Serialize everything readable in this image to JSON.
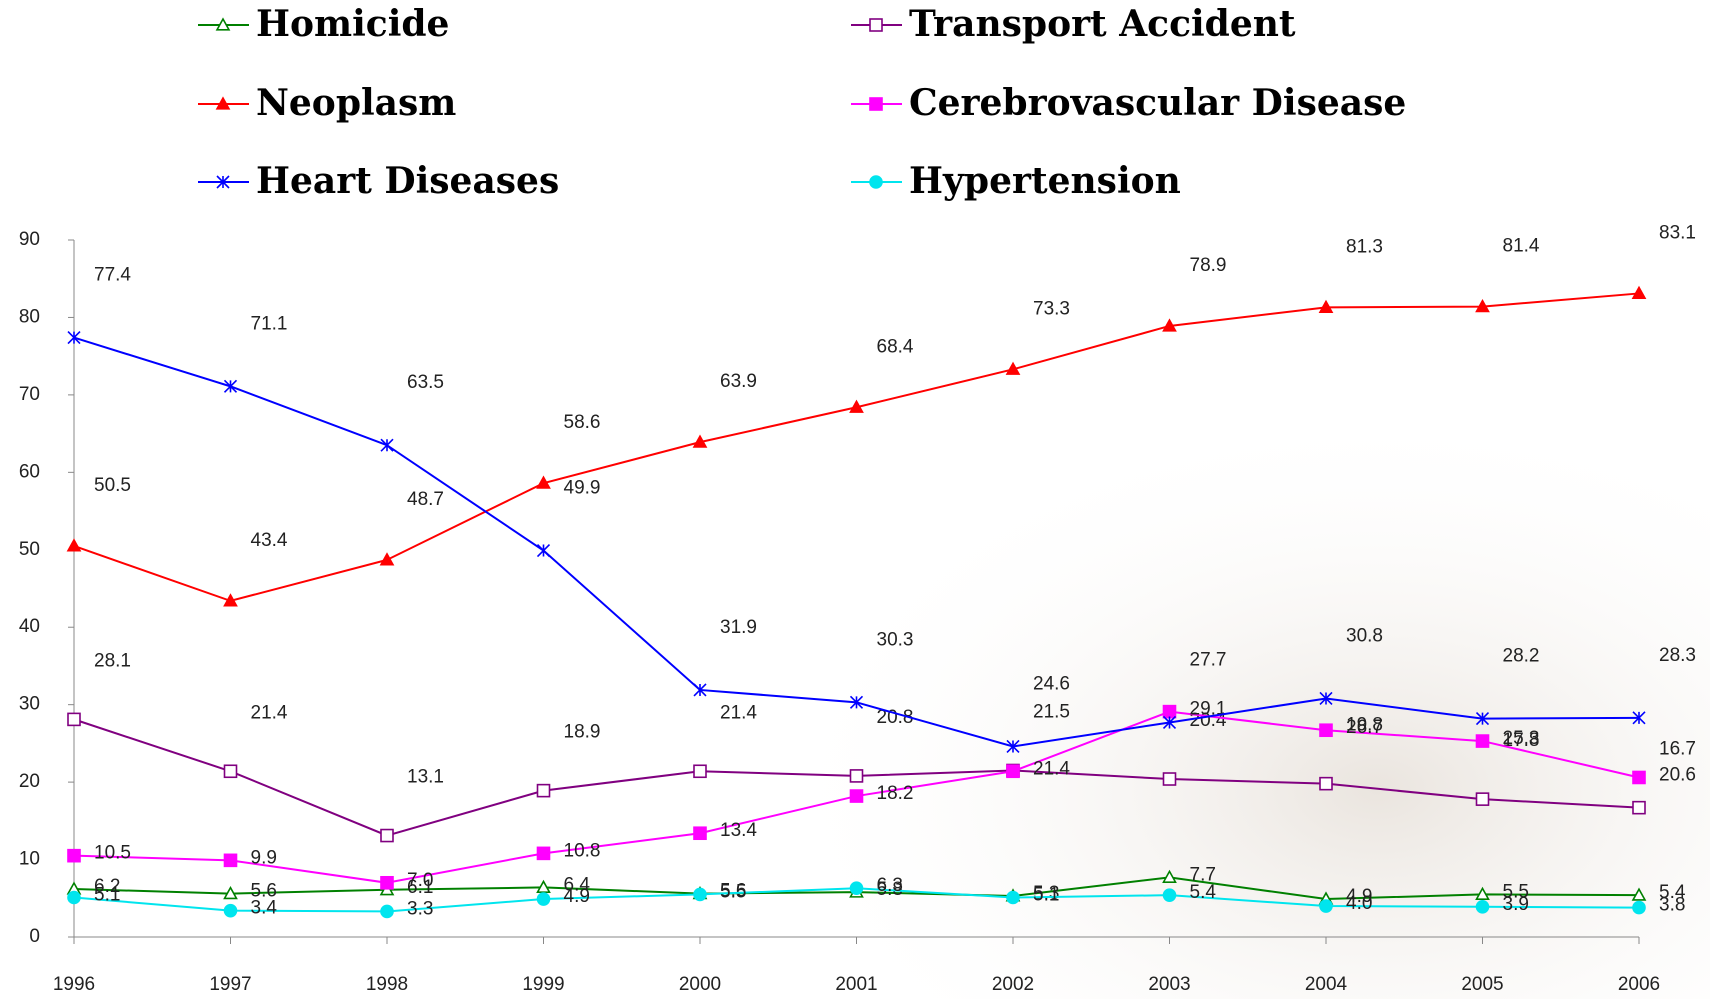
{
  "chart_data": {
    "type": "line",
    "categories": [
      "1996",
      "1997",
      "1998",
      "1999",
      "2000",
      "2001",
      "2002",
      "2003",
      "2004",
      "2005",
      "2006"
    ],
    "series": [
      {
        "name": "Homicide",
        "color": "#008000",
        "marker": "triangle-open",
        "values": [
          6.2,
          5.6,
          6.1,
          6.4,
          5.6,
          5.8,
          5.3,
          7.7,
          4.9,
          5.5,
          5.4
        ],
        "value_labels": [
          "6.2",
          "5.6",
          "6.1",
          "6.4",
          "5.6",
          "5.8",
          "5.3",
          "7.7",
          "4.9",
          "5.5",
          "5.4"
        ]
      },
      {
        "name": "Transport Accident",
        "color": "#800080",
        "marker": "square-open",
        "values": [
          28.1,
          21.4,
          13.1,
          18.9,
          21.4,
          20.8,
          21.5,
          20.4,
          19.8,
          17.8,
          16.7
        ],
        "value_labels": [
          "28.1",
          "21.4",
          "13.1",
          "18.9",
          "21.4",
          "20.8",
          "21.5",
          "20.4",
          "19.8",
          "17.8",
          "16.7"
        ]
      },
      {
        "name": "Neoplasm",
        "color": "#ff0000",
        "marker": "triangle",
        "values": [
          50.5,
          43.4,
          48.7,
          58.6,
          63.9,
          68.4,
          73.3,
          78.9,
          81.3,
          81.4,
          83.1
        ],
        "value_labels": [
          "50.5",
          "43.4",
          "48.7",
          "58.6",
          "63.9",
          "68.4",
          "73.3",
          "78.9",
          "81.3",
          "81.4",
          "83.1"
        ]
      },
      {
        "name": "Cerebrovascular Disease",
        "color": "#ff00ff",
        "marker": "square",
        "values": [
          10.5,
          9.9,
          7.0,
          10.8,
          13.4,
          18.2,
          21.4,
          29.1,
          26.7,
          25.3,
          20.6
        ],
        "value_labels": [
          "10.5",
          "9.9",
          "7.0",
          "10.8",
          "13.4",
          "18.2",
          "21.4",
          "29.1",
          "26.7",
          "25.3",
          "20.6"
        ]
      },
      {
        "name": "Heart Diseases",
        "color": "#0000ff",
        "marker": "star",
        "values": [
          77.4,
          71.1,
          63.5,
          49.9,
          31.9,
          30.3,
          24.6,
          27.7,
          30.8,
          28.2,
          28.3
        ],
        "value_labels": [
          "77.4",
          "71.1",
          "63.5",
          "49.9",
          "31.9",
          "30.3",
          "24.6",
          "27.7",
          "30.8",
          "28.2",
          "28.3"
        ]
      },
      {
        "name": "Hypertension",
        "color": "#00e5ee",
        "marker": "circle",
        "values": [
          5.1,
          3.4,
          3.3,
          4.9,
          5.5,
          6.3,
          5.1,
          5.4,
          4.0,
          3.9,
          3.8
        ],
        "value_labels": [
          "5.1",
          "3.4",
          "3.3",
          "4.9",
          "5.5",
          "6.3",
          "5.1",
          "5.4",
          "4.0",
          "3.9",
          "3.8"
        ]
      }
    ],
    "ylim": [
      0,
      90
    ],
    "yticks": [
      0,
      10,
      20,
      30,
      40,
      50,
      60,
      70,
      80,
      90
    ],
    "grid": false
  }
}
